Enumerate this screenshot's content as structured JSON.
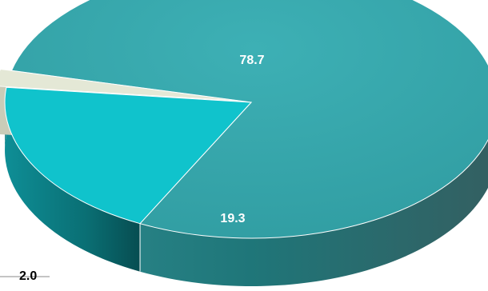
{
  "chart_data": {
    "type": "pie",
    "title": "",
    "slices": [
      {
        "label": "78.7",
        "value": 78.7,
        "color": "#36a6ab",
        "side_color": "#1f7679",
        "label_color": "#ffffff"
      },
      {
        "label": "19.3",
        "value": 19.3,
        "color": "#10c3cc",
        "side_color": "#0a6f74",
        "label_color": "#ffffff"
      },
      {
        "label": "2.0",
        "value": 2.0,
        "color": "#e4e8d6",
        "side_color": "#a9ad98",
        "label_color": "#000000"
      }
    ],
    "style": "3d-exploded"
  }
}
